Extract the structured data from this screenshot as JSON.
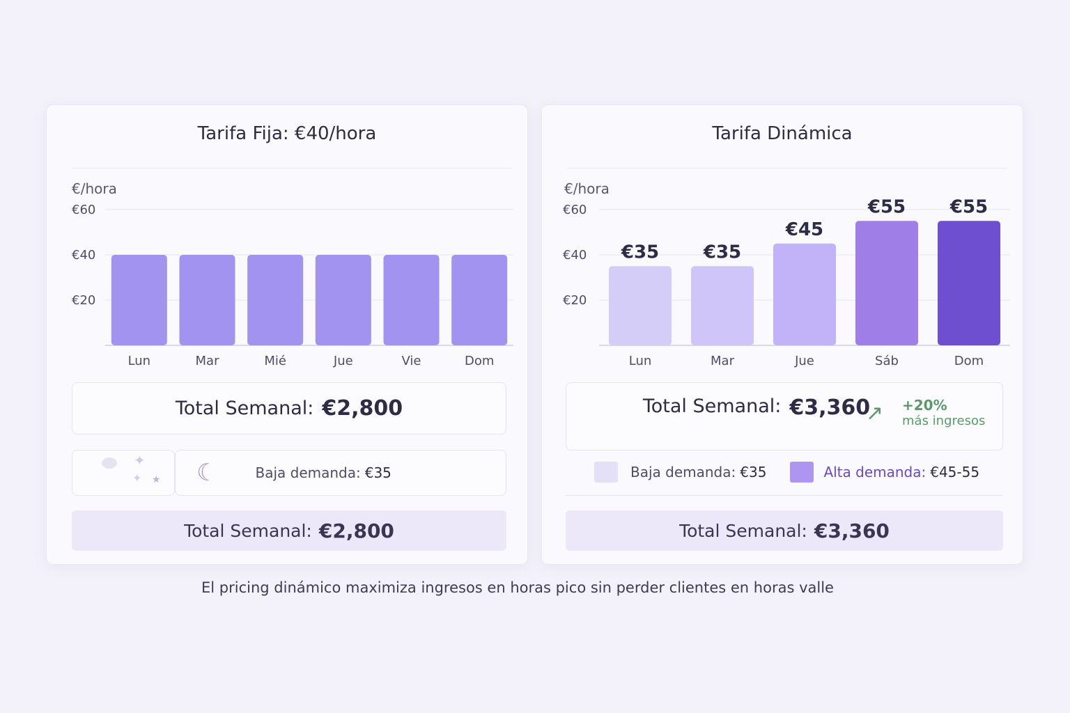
{
  "chart_data": [
    {
      "type": "bar",
      "title": "Tarifa Fija: €40/hora",
      "ylabel": "€/hora",
      "yticks": [
        "€20",
        "€40",
        "€60"
      ],
      "ytick_values": [
        20,
        40,
        60
      ],
      "ylim": [
        0,
        60
      ],
      "grid": true,
      "categories": [
        "Lun",
        "Mar",
        "Mié",
        "Jue",
        "Vie",
        "Dom"
      ],
      "values": [
        40,
        40,
        40,
        40,
        40,
        40
      ],
      "bar_color": "#a393f0"
    },
    {
      "type": "bar",
      "title": "Tarifa Dinámica",
      "ylabel": "€/hora",
      "yticks": [
        "€20",
        "€40",
        "€60"
      ],
      "ytick_values": [
        20,
        40,
        60
      ],
      "ylim": [
        0,
        60
      ],
      "grid": true,
      "categories": [
        "Lun",
        "Mar",
        "Jue",
        "Sáb",
        "Dom"
      ],
      "values": [
        35,
        35,
        45,
        55,
        55
      ],
      "data_labels": [
        "€35",
        "€35",
        "€45",
        "€55",
        "€55"
      ],
      "bar_colors": [
        "#d3cdf8",
        "#d0c5f8",
        "#c2b3f8",
        "#a07ee8",
        "#6d4fd0"
      ]
    }
  ],
  "left": {
    "total_label": "Total Semanal:",
    "total_value": "€2,800",
    "legend_low": "Baja demanda:",
    "legend_low_value": "€35",
    "bottom_label": "Total Semanal:",
    "bottom_value": "€2,800"
  },
  "right": {
    "total_label": "Total Semanal:",
    "total_value": "€3,360",
    "increase": "+20%",
    "increase_text": "más ingresos",
    "legend_low": "Baja demanda:",
    "legend_low_value": "€35",
    "legend_high": "Alta demanda:",
    "legend_high_value": "€45-55",
    "bottom_label": "Total Semanal:",
    "bottom_value": "€3,360",
    "accent_green": "#5a9a6a",
    "accent_purple": "#6a48c8"
  },
  "caption": "El pricing dinámico maximiza ingresos en horas pico sin perder clientes en horas valle"
}
